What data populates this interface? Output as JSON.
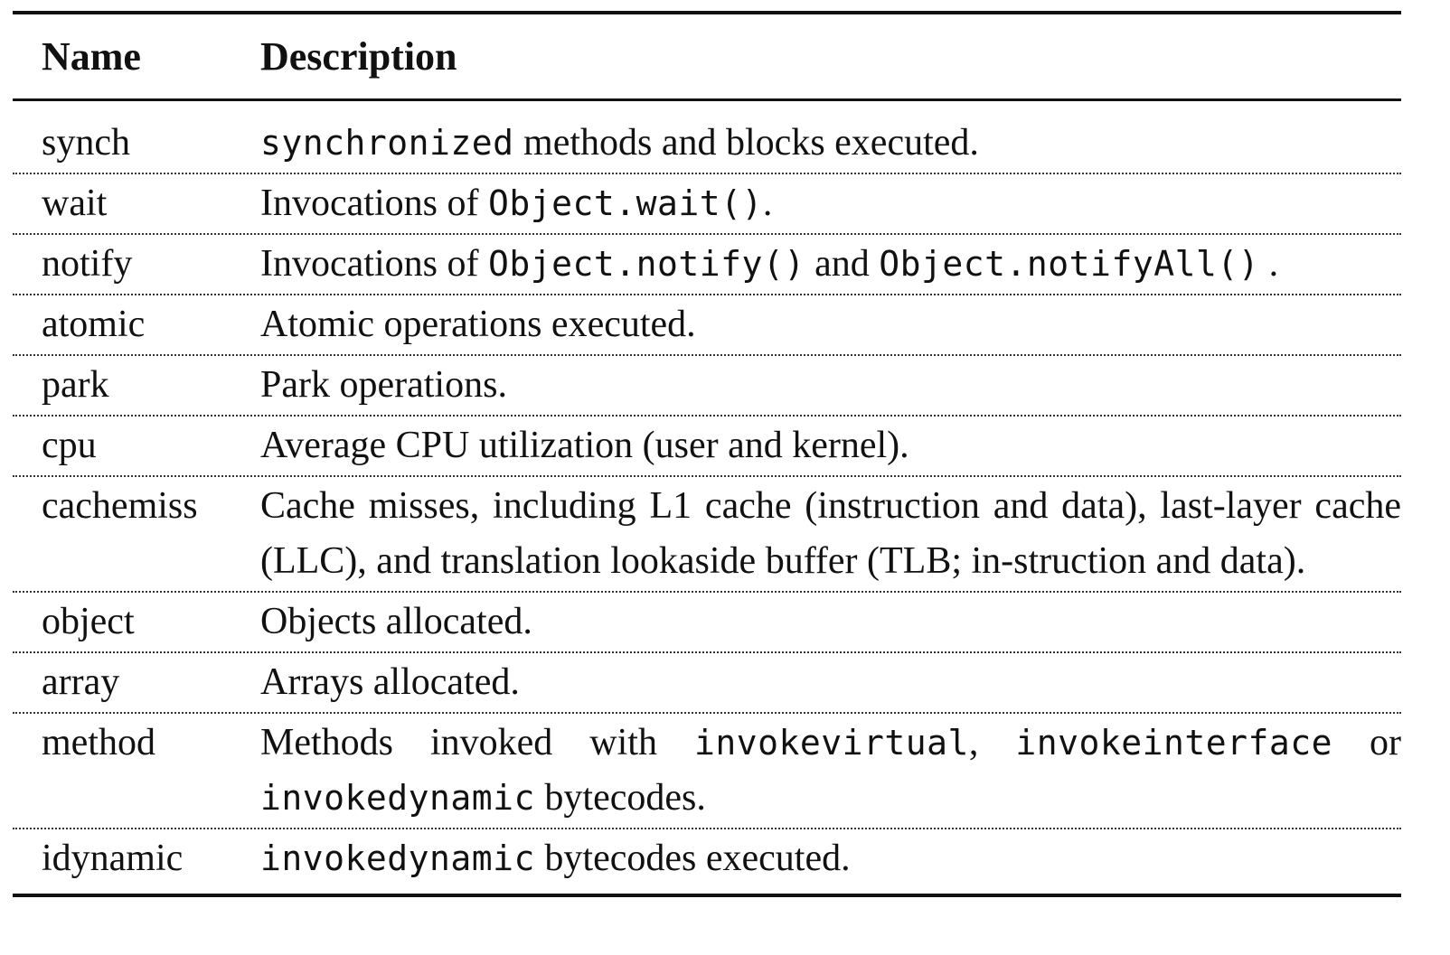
{
  "table": {
    "headers": {
      "name": "Name",
      "description": "Description"
    },
    "rows": [
      {
        "name": "synch",
        "desc": [
          {
            "code": "synchronized"
          },
          {
            "text": " methods and blocks executed."
          }
        ]
      },
      {
        "name": "wait",
        "desc": [
          {
            "text": "Invocations of "
          },
          {
            "code": "Object.wait()"
          },
          {
            "text": "."
          }
        ]
      },
      {
        "name": "notify",
        "desc": [
          {
            "text": "Invocations of "
          },
          {
            "code": "Object.notify()"
          },
          {
            "text": " and "
          },
          {
            "code": "Object.notifyAll()"
          },
          {
            "text": " ."
          }
        ]
      },
      {
        "name": "atomic",
        "desc": [
          {
            "text": "Atomic operations executed."
          }
        ]
      },
      {
        "name": "park",
        "desc": [
          {
            "text": "Park operations."
          }
        ]
      },
      {
        "name": "cpu",
        "desc": [
          {
            "text": "Average CPU utilization (user and kernel)."
          }
        ]
      },
      {
        "name": "cachemiss",
        "desc": [
          {
            "text": "Cache misses, including L1 cache (instruction and data), last-layer cache (LLC), and translation lookaside buffer (TLB; in-struction and data)."
          }
        ]
      },
      {
        "name": "object",
        "desc": [
          {
            "text": "Objects allocated."
          }
        ]
      },
      {
        "name": "array",
        "desc": [
          {
            "text": "Arrays allocated."
          }
        ]
      },
      {
        "name": "method",
        "desc": [
          {
            "text": "Methods invoked with "
          },
          {
            "code": "invokevirtual"
          },
          {
            "text": ", "
          },
          {
            "code": "invokeinterface"
          },
          {
            "text": " or "
          },
          {
            "code": "invokedynamic"
          },
          {
            "text": " bytecodes."
          }
        ]
      },
      {
        "name": "idynamic",
        "desc": [
          {
            "code": "invokedynamic"
          },
          {
            "text": " bytecodes executed."
          }
        ]
      }
    ]
  }
}
